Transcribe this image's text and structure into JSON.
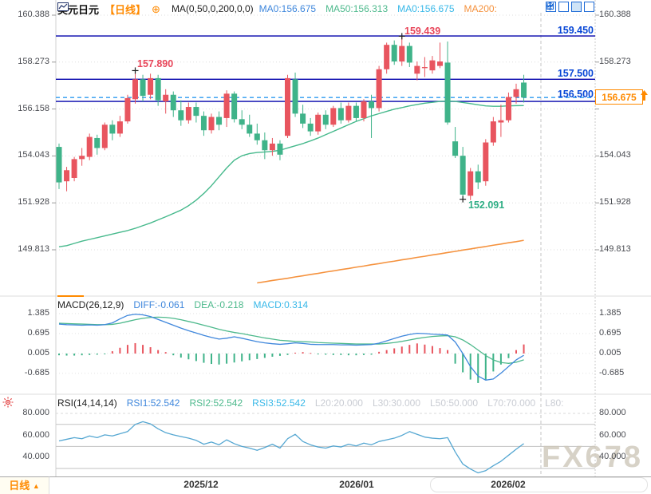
{
  "header": {
    "symbol": "美元日元",
    "period": "【日线】",
    "add_icon": "⊕",
    "ma_settings": "MA(0,50,0,200,0,0)",
    "ma_values": [
      {
        "label": "MA0:156.675",
        "color": "#3f87dc"
      },
      {
        "label": "MA50:156.313",
        "color": "#4db98c"
      },
      {
        "label": "MA0:156.675",
        "color": "#38b8e8"
      },
      {
        "label": "MA200:",
        "color": "#f5923e"
      }
    ]
  },
  "toolbar": {
    "icons": [
      "pan",
      "axis-scale",
      "axis-scale-active",
      "hide-panel"
    ]
  },
  "levels": [
    {
      "label": "159.450"
    },
    {
      "label": "157.500"
    },
    {
      "label": "156.500"
    }
  ],
  "current_price": {
    "value": "156.675"
  },
  "annotations": {
    "high1": "157.890",
    "high2": "159.439",
    "low": "152.091"
  },
  "macd_header": {
    "title": "MACD(26,12,9)",
    "diff": "DIFF:-0.061",
    "dea": "DEA:-0.218",
    "macd": "MACD:0.314"
  },
  "rsi_header": {
    "title": "RSI(14,14,14)",
    "rsi1": "RSI1:52.542",
    "rsi2": "RSI2:52.542",
    "rsi3": "RSI3:52.542",
    "levels": [
      "L20:20.000",
      "L30:30.000",
      "L50:50.000",
      "L70:70.000",
      "L80:"
    ]
  },
  "bottom": {
    "period": "日线",
    "arrow": "▲",
    "dates": [
      "2025/12",
      "2026/01",
      "2026/02"
    ]
  },
  "watermark": "FX678",
  "palette": {
    "candle_up": "#e8555f",
    "candle_down": "#3fb389",
    "ma50_line": "#46b98c",
    "ma200_line": "#f5923e",
    "level_line": "#0100ab",
    "level_text": "#0847d6",
    "dashed_line": "#2e9bf0",
    "current_price": "#ff8a00",
    "diff_line": "#3f87dc",
    "dea_line": "#4db98c",
    "rsi_line": "#55a7d2",
    "annotation_red": "#e8465a",
    "annotation_green": "#2fae85"
  },
  "chart_data": {
    "type": "candlestick",
    "title": "美元日元 日线 (USD/JPY Daily)",
    "y_ticks_main": [
      160.388,
      158.273,
      156.158,
      154.043,
      151.928,
      149.813
    ],
    "y_ticks_macd": [
      1.385,
      0.695,
      0.005,
      -0.685
    ],
    "y_axis_rsi": [
      80,
      60,
      40
    ],
    "y_grid_rsi": [
      70,
      50,
      30
    ],
    "h_levels": [
      159.45,
      157.5,
      156.5
    ],
    "dashed_level": 156.675,
    "x_dates": [
      "2025/12",
      "2026/01",
      "2026/02"
    ],
    "high1_marker_index": 10,
    "high2_marker_index": 45,
    "low_marker_index": 53,
    "candles": [
      [
        154.45,
        154.6,
        152.55,
        152.85
      ],
      [
        152.9,
        153.55,
        152.45,
        153.4
      ],
      [
        153.05,
        154.0,
        152.9,
        153.9
      ],
      [
        153.9,
        154.4,
        153.6,
        154.05
      ],
      [
        154.0,
        155.05,
        153.85,
        154.9
      ],
      [
        154.85,
        155.0,
        154.1,
        154.4
      ],
      [
        154.4,
        155.55,
        154.3,
        155.45
      ],
      [
        155.45,
        155.65,
        154.75,
        155.05
      ],
      [
        155.05,
        155.85,
        154.9,
        155.6
      ],
      [
        155.6,
        156.8,
        155.5,
        156.65
      ],
      [
        156.6,
        157.89,
        156.4,
        157.5
      ],
      [
        157.5,
        157.7,
        156.5,
        156.75
      ],
      [
        156.8,
        157.75,
        156.6,
        157.55
      ],
      [
        157.55,
        157.7,
        156.3,
        156.55
      ],
      [
        156.5,
        157.05,
        155.95,
        156.8
      ],
      [
        156.8,
        156.95,
        155.8,
        156.1
      ],
      [
        156.1,
        156.55,
        155.4,
        155.65
      ],
      [
        155.65,
        156.45,
        155.5,
        156.25
      ],
      [
        156.25,
        156.45,
        155.55,
        155.85
      ],
      [
        155.85,
        156.05,
        154.95,
        155.2
      ],
      [
        155.2,
        155.95,
        155.05,
        155.8
      ],
      [
        155.8,
        156.05,
        155.2,
        155.45
      ],
      [
        155.75,
        157.0,
        155.35,
        156.85
      ],
      [
        156.85,
        156.95,
        155.55,
        155.7
      ],
      [
        155.7,
        156.1,
        155.25,
        155.45
      ],
      [
        155.45,
        155.9,
        154.9,
        155.05
      ],
      [
        155.05,
        155.5,
        154.55,
        154.75
      ],
      [
        154.75,
        155.1,
        153.9,
        154.3
      ],
      [
        154.3,
        154.85,
        154.05,
        154.6
      ],
      [
        154.6,
        154.75,
        153.85,
        154.1
      ],
      [
        154.95,
        157.7,
        154.85,
        157.55
      ],
      [
        157.5,
        157.8,
        155.8,
        155.95
      ],
      [
        155.95,
        156.35,
        155.3,
        155.5
      ],
      [
        155.5,
        155.75,
        154.95,
        155.15
      ],
      [
        155.15,
        156.0,
        155.0,
        155.9
      ],
      [
        155.9,
        156.1,
        155.25,
        155.45
      ],
      [
        155.45,
        156.3,
        155.35,
        156.2
      ],
      [
        156.2,
        156.45,
        155.5,
        155.65
      ],
      [
        155.65,
        156.45,
        155.55,
        156.3
      ],
      [
        156.3,
        156.45,
        155.6,
        155.75
      ],
      [
        155.75,
        156.6,
        155.6,
        156.5
      ],
      [
        156.5,
        156.8,
        154.85,
        156.2
      ],
      [
        156.2,
        158.1,
        156.05,
        157.95
      ],
      [
        157.95,
        159.15,
        157.75,
        159.05
      ],
      [
        159.05,
        159.25,
        158.15,
        158.3
      ],
      [
        158.3,
        159.439,
        158.1,
        159.0
      ],
      [
        159.0,
        159.15,
        158.05,
        158.25
      ],
      [
        157.75,
        158.3,
        157.45,
        158.1
      ],
      [
        158.0,
        158.5,
        157.6,
        158.05
      ],
      [
        157.9,
        158.55,
        157.75,
        158.35
      ],
      [
        158.1,
        159.15,
        158.0,
        158.3
      ],
      [
        158.25,
        159.2,
        155.45,
        155.55
      ],
      [
        154.7,
        155.35,
        153.95,
        154.05
      ],
      [
        154.05,
        154.45,
        152.091,
        152.3
      ],
      [
        152.25,
        153.5,
        152.05,
        153.35
      ],
      [
        153.35,
        153.65,
        152.55,
        152.85
      ],
      [
        152.9,
        154.8,
        152.7,
        154.65
      ],
      [
        154.65,
        155.8,
        154.5,
        155.6
      ],
      [
        155.55,
        156.35,
        154.9,
        155.65
      ],
      [
        155.65,
        156.9,
        155.55,
        156.7
      ],
      [
        156.7,
        157.3,
        156.4,
        157.05
      ],
      [
        157.35,
        157.7,
        156.45,
        156.675
      ]
    ],
    "ma50": [
      149.95,
      150.0,
      150.1,
      150.2,
      150.28,
      150.36,
      150.44,
      150.52,
      150.6,
      150.68,
      150.78,
      150.9,
      151.02,
      151.16,
      151.3,
      151.45,
      151.6,
      151.8,
      152.05,
      152.35,
      152.7,
      153.1,
      153.5,
      153.85,
      154.05,
      154.15,
      154.2,
      154.22,
      154.25,
      154.3,
      154.4,
      154.5,
      154.6,
      154.72,
      154.85,
      155.0,
      155.15,
      155.3,
      155.45,
      155.6,
      155.72,
      155.85,
      155.95,
      156.05,
      156.15,
      156.22,
      156.3,
      156.36,
      156.42,
      156.46,
      156.5,
      156.52,
      156.5,
      156.45,
      156.4,
      156.35,
      156.3,
      156.28,
      156.28,
      156.3,
      156.31,
      156.313
    ],
    "ma200": [
      null,
      null,
      null,
      null,
      null,
      null,
      null,
      null,
      null,
      null,
      null,
      null,
      null,
      null,
      null,
      null,
      null,
      null,
      null,
      null,
      null,
      null,
      null,
      null,
      null,
      null,
      148.32,
      148.37,
      148.43,
      148.48,
      148.53,
      148.59,
      148.64,
      148.7,
      148.75,
      148.81,
      148.86,
      148.92,
      148.97,
      149.03,
      149.08,
      149.14,
      149.19,
      149.25,
      149.3,
      149.36,
      149.41,
      149.47,
      149.52,
      149.58,
      149.63,
      149.69,
      149.74,
      149.8,
      149.85,
      149.91,
      149.96,
      150.02,
      150.07,
      150.13,
      150.18,
      150.24
    ],
    "macd": {
      "diff": [
        1.02,
        1.0,
        0.99,
        0.98,
        0.99,
        0.98,
        1.0,
        1.06,
        1.2,
        1.32,
        1.36,
        1.34,
        1.28,
        1.18,
        1.08,
        0.98,
        0.88,
        0.79,
        0.71,
        0.63,
        0.56,
        0.5,
        0.53,
        0.58,
        0.53,
        0.47,
        0.41,
        0.37,
        0.34,
        0.32,
        0.34,
        0.37,
        0.35,
        0.32,
        0.31,
        0.31,
        0.31,
        0.3,
        0.3,
        0.29,
        0.3,
        0.31,
        0.36,
        0.44,
        0.52,
        0.6,
        0.66,
        0.7,
        0.69,
        0.67,
        0.66,
        0.64,
        0.4,
        0.0,
        -0.45,
        -0.78,
        -0.92,
        -0.88,
        -0.68,
        -0.45,
        -0.22,
        -0.061
      ],
      "dea": [
        1.05,
        1.04,
        1.03,
        1.02,
        1.01,
        1.0,
        1.0,
        1.01,
        1.05,
        1.11,
        1.17,
        1.22,
        1.25,
        1.26,
        1.25,
        1.22,
        1.17,
        1.11,
        1.05,
        0.98,
        0.91,
        0.84,
        0.78,
        0.73,
        0.69,
        0.64,
        0.59,
        0.54,
        0.5,
        0.46,
        0.44,
        0.42,
        0.41,
        0.4,
        0.38,
        0.37,
        0.36,
        0.35,
        0.34,
        0.33,
        0.33,
        0.33,
        0.33,
        0.35,
        0.38,
        0.42,
        0.47,
        0.52,
        0.56,
        0.59,
        0.61,
        0.62,
        0.58,
        0.47,
        0.31,
        0.12,
        -0.07,
        -0.22,
        -0.31,
        -0.34,
        -0.3,
        -0.218
      ],
      "hist": [
        -0.06,
        -0.07,
        -0.07,
        -0.06,
        -0.05,
        -0.04,
        -0.02,
        0.08,
        0.2,
        0.3,
        0.36,
        0.3,
        0.22,
        0.12,
        0.05,
        -0.06,
        -0.14,
        -0.2,
        -0.26,
        -0.32,
        -0.36,
        -0.38,
        -0.35,
        -0.31,
        -0.27,
        -0.23,
        -0.19,
        -0.15,
        -0.11,
        -0.08,
        -0.05,
        0.03,
        0.05,
        0.02,
        -0.03,
        -0.04,
        -0.05,
        -0.05,
        -0.06,
        -0.06,
        -0.05,
        -0.04,
        0.06,
        0.12,
        0.18,
        0.24,
        0.3,
        0.35,
        0.31,
        0.26,
        0.19,
        0.12,
        -0.35,
        -0.65,
        -0.9,
        -1.02,
        -0.9,
        -0.62,
        -0.38,
        -0.16,
        0.12,
        0.314
      ]
    },
    "rsi": [
      55,
      56.5,
      58,
      57,
      59.5,
      58,
      60.5,
      59.5,
      61.5,
      63.5,
      70,
      72.5,
      70.5,
      66,
      62.5,
      60.5,
      59,
      57.5,
      55.5,
      52,
      54,
      51.5,
      56,
      52.5,
      50,
      48.5,
      46.5,
      49,
      52,
      48.5,
      57,
      61,
      54.5,
      51.5,
      49.5,
      48.5,
      50.5,
      49.5,
      52,
      50.5,
      53,
      51.5,
      54.5,
      56,
      57.5,
      60,
      63.5,
      61,
      58.5,
      57.5,
      57,
      58,
      45,
      34,
      29.5,
      26,
      28,
      32.5,
      36.5,
      42,
      47.5,
      52.542
    ]
  }
}
